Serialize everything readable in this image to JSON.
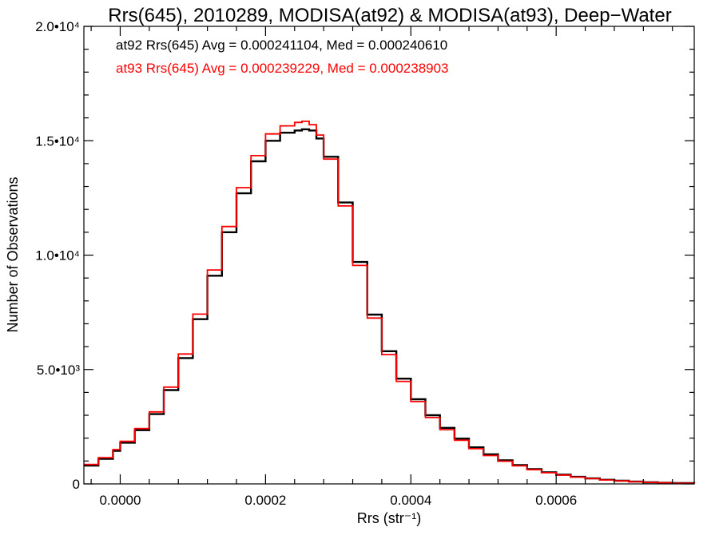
{
  "chart_data": {
    "type": "line",
    "title": "Rrs(645), 2010289, MODISA(at92) & MODISA(at93), Deep−Water",
    "xlabel": "Rrs (str⁻¹)",
    "ylabel": "Number of Observations",
    "xlim": [
      -5e-05,
      0.00079
    ],
    "ylim": [
      0,
      20000
    ],
    "x_ticks": [
      {
        "value": 0.0,
        "label": "0.0000"
      },
      {
        "value": 0.0002,
        "label": "0.0002"
      },
      {
        "value": 0.0004,
        "label": "0.0004"
      },
      {
        "value": 0.0006,
        "label": "0.0006"
      }
    ],
    "y_ticks": [
      {
        "value": 0,
        "label": "0"
      },
      {
        "value": 5000,
        "label": "5.0•10³"
      },
      {
        "value": 10000,
        "label": "1.0•10⁴"
      },
      {
        "value": 15000,
        "label": "1.5•10⁴"
      },
      {
        "value": 20000,
        "label": "2.0•10⁴"
      }
    ],
    "grid": false,
    "annotations": [
      {
        "text": "at92 Rrs(645) Avg = 0.000241104, Med = 0.000240610",
        "color": "#000000"
      },
      {
        "text": "at93 Rrs(645) Avg = 0.000239229, Med = 0.000238903",
        "color": "#ff0000"
      }
    ],
    "series": [
      {
        "color": "#000000",
        "style": "step",
        "x": [
          -5e-05,
          -3e-05,
          -1e-05,
          0.0,
          2e-05,
          4e-05,
          6e-05,
          8e-05,
          0.0001,
          0.00012,
          0.00014,
          0.00016,
          0.00018,
          0.0002,
          0.00022,
          0.00024,
          0.00025,
          0.00026,
          0.00027,
          0.00028,
          0.0003,
          0.00032,
          0.00034,
          0.00036,
          0.00038,
          0.0004,
          0.00042,
          0.00044,
          0.00046,
          0.00048,
          0.0005,
          0.00052,
          0.00054,
          0.00056,
          0.00058,
          0.0006,
          0.00062,
          0.00064,
          0.00066,
          0.00068,
          0.0007,
          0.00072,
          0.00074,
          0.00076,
          0.00079
        ],
        "y": [
          800,
          1100,
          1450,
          1800,
          2350,
          3050,
          4100,
          5500,
          7200,
          9100,
          11000,
          12700,
          14100,
          15000,
          15350,
          15450,
          15500,
          15450,
          15100,
          14300,
          12300,
          9700,
          7400,
          5800,
          4600,
          3700,
          3000,
          2450,
          1980,
          1600,
          1290,
          1030,
          820,
          650,
          510,
          400,
          310,
          240,
          180,
          140,
          100,
          70,
          50,
          35,
          20
        ]
      },
      {
        "color": "#ff0000",
        "style": "step",
        "x": [
          -5e-05,
          -3e-05,
          -1e-05,
          0.0,
          2e-05,
          4e-05,
          6e-05,
          8e-05,
          0.0001,
          0.00012,
          0.00014,
          0.00016,
          0.00018,
          0.0002,
          0.00022,
          0.00024,
          0.00025,
          0.00026,
          0.00027,
          0.00028,
          0.0003,
          0.00032,
          0.00034,
          0.00036,
          0.00038,
          0.0004,
          0.00042,
          0.00044,
          0.00046,
          0.00048,
          0.0005,
          0.00052,
          0.00054,
          0.00056,
          0.00058,
          0.0006,
          0.00062,
          0.00064,
          0.00066,
          0.00068,
          0.0007,
          0.00072,
          0.00074,
          0.00076,
          0.00079
        ],
        "y": [
          850,
          1150,
          1500,
          1860,
          2420,
          3150,
          4230,
          5680,
          7420,
          9350,
          11250,
          12950,
          14350,
          15300,
          15650,
          15800,
          15850,
          15700,
          15250,
          14200,
          12150,
          9550,
          7250,
          5650,
          4480,
          3600,
          2900,
          2370,
          1910,
          1540,
          1240,
          990,
          790,
          620,
          490,
          385,
          298,
          230,
          172,
          133,
          95,
          66,
          47,
          33,
          19
        ]
      }
    ]
  }
}
